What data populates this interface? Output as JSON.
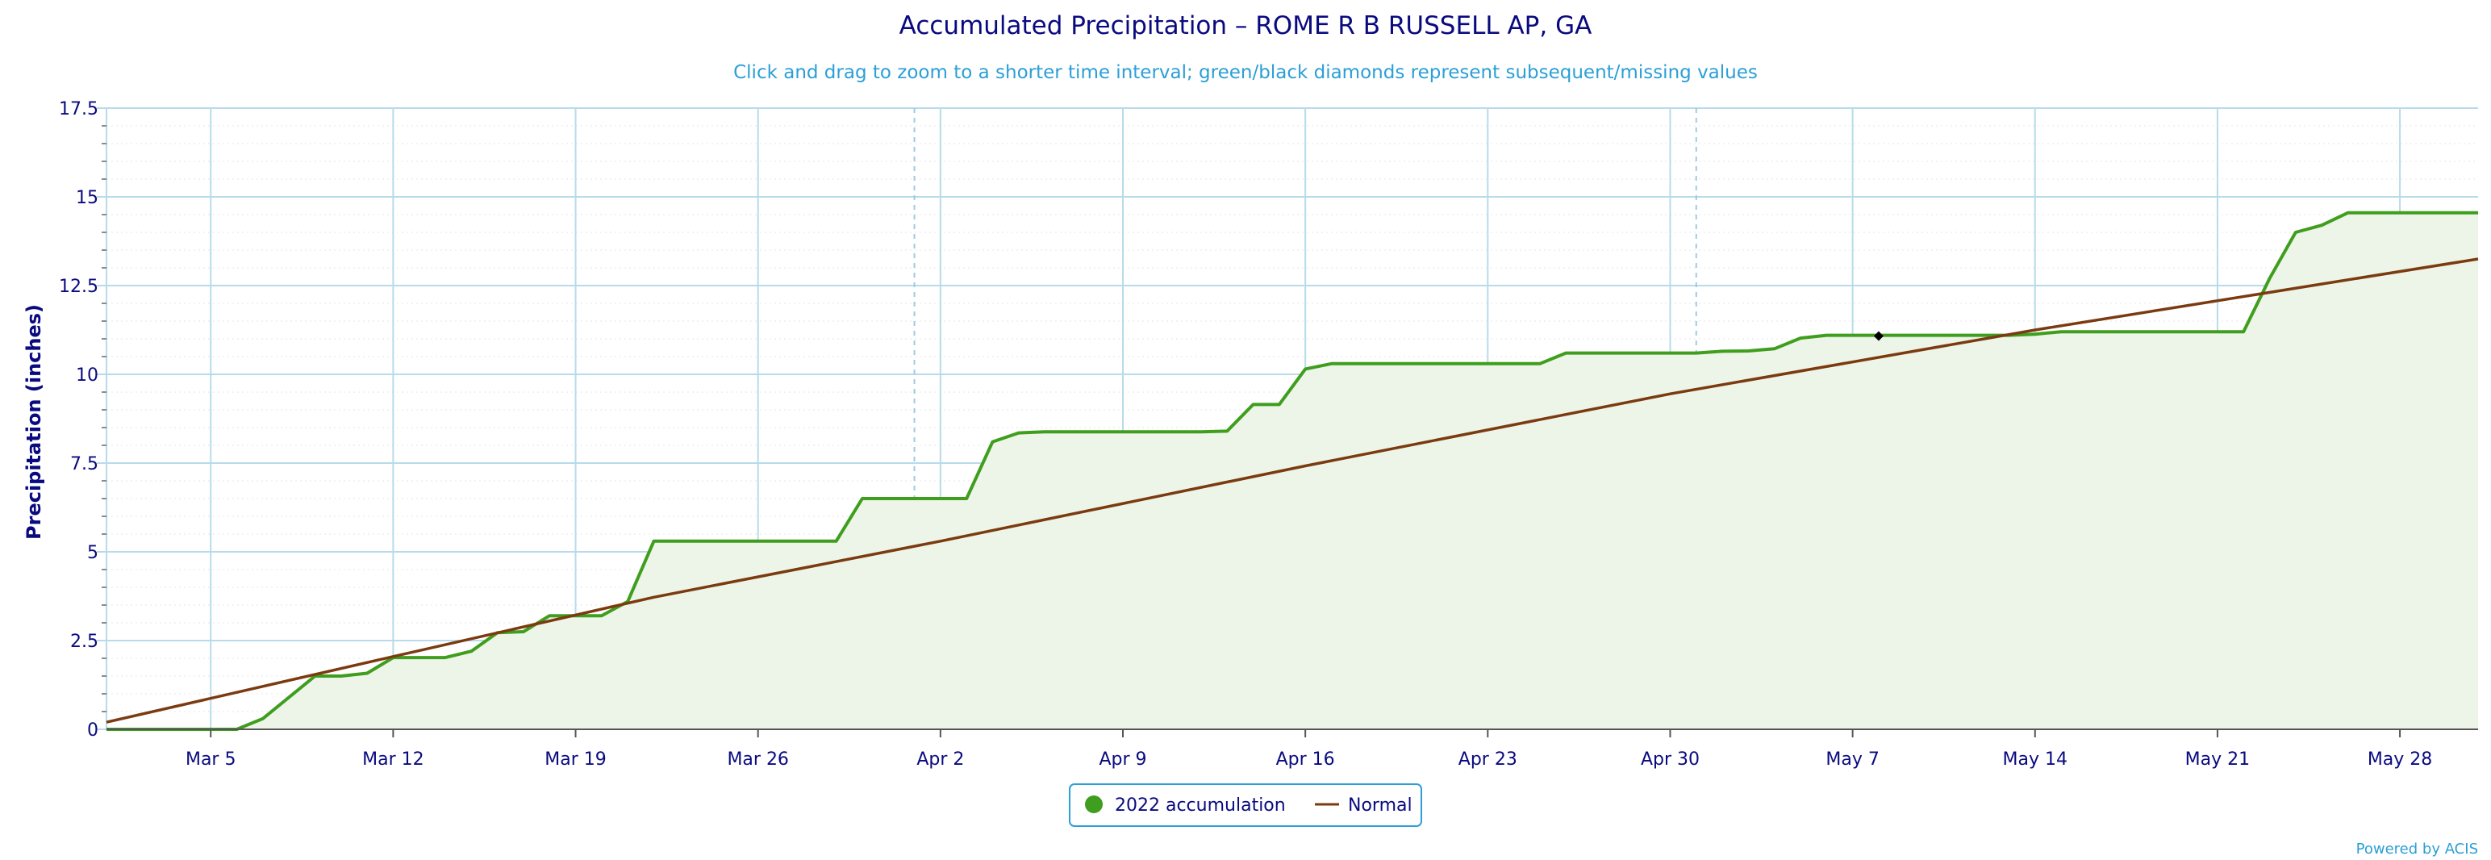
{
  "chart_data": {
    "type": "line",
    "title": "Accumulated Precipitation – ROME R B RUSSELL AP, GA",
    "subtitle": "Click and drag to zoom to a shorter time interval; green/black diamonds represent subsequent/missing values",
    "xlabel": "",
    "ylabel": "Precipitation (inches)",
    "x_start": "Mar 1",
    "x_ticks": [
      "Mar 5",
      "Mar 12",
      "Mar 19",
      "Mar 26",
      "Apr 2",
      "Apr 9",
      "Apr 16",
      "Apr 23",
      "Apr 30",
      "May 7",
      "May 14",
      "May 21",
      "May 28"
    ],
    "x_range": [
      "Mar 1",
      "May 31"
    ],
    "ylim": [
      0,
      17.5
    ],
    "y_ticks": [
      "0",
      "2.5",
      "5",
      "7.5",
      "10",
      "12.5",
      "15",
      "17.5"
    ],
    "grid": true,
    "legend_position": "bottom",
    "series": [
      {
        "name": "2022 accumulation",
        "color": "#3f9e1d",
        "fill": "#ecf5e8",
        "points": [
          [
            "Mar 1",
            0
          ],
          [
            "Mar 6",
            0
          ],
          [
            "Mar 7",
            0.3
          ],
          [
            "Mar 9",
            1.5
          ],
          [
            "Mar 10",
            1.5
          ],
          [
            "Mar 11",
            1.58
          ],
          [
            "Mar 12",
            2.02
          ],
          [
            "Mar 14",
            2.02
          ],
          [
            "Mar 15",
            2.2
          ],
          [
            "Mar 16",
            2.72
          ],
          [
            "Mar 17",
            2.75
          ],
          [
            "Mar 18",
            3.2
          ],
          [
            "Mar 20",
            3.2
          ],
          [
            "Mar 21",
            3.6
          ],
          [
            "Mar 22",
            5.3
          ],
          [
            "Mar 29",
            5.3
          ],
          [
            "Mar 30",
            6.5
          ],
          [
            "Apr 3",
            6.5
          ],
          [
            "Apr 4",
            8.1
          ],
          [
            "Apr 5",
            8.35
          ],
          [
            "Apr 6",
            8.38
          ],
          [
            "Apr 12",
            8.38
          ],
          [
            "Apr 13",
            8.4
          ],
          [
            "Apr 14",
            9.15
          ],
          [
            "Apr 15",
            9.15
          ],
          [
            "Apr 16",
            10.15
          ],
          [
            "Apr 17",
            10.3
          ],
          [
            "Apr 25",
            10.3
          ],
          [
            "Apr 26",
            10.6
          ],
          [
            "May 1",
            10.6
          ],
          [
            "May 2",
            10.65
          ],
          [
            "May 3",
            10.66
          ],
          [
            "May 4",
            10.72
          ],
          [
            "May 5",
            11.02
          ],
          [
            "May 6",
            11.1
          ],
          [
            "May 13",
            11.1
          ],
          [
            "May 14",
            11.13
          ],
          [
            "May 15",
            11.2
          ],
          [
            "May 22",
            11.2
          ],
          [
            "May 23",
            12.7
          ],
          [
            "May 24",
            14.0
          ],
          [
            "May 25",
            14.2
          ],
          [
            "May 26",
            14.55
          ],
          [
            "May 31",
            14.55
          ]
        ]
      },
      {
        "name": "Normal",
        "color": "#7b3a10",
        "points": [
          [
            "Mar 1",
            0.2
          ],
          [
            "Mar 12",
            2.05
          ],
          [
            "Mar 22",
            3.72
          ],
          [
            "Apr 2",
            5.3
          ],
          [
            "Apr 16",
            7.42
          ],
          [
            "Apr 30",
            9.45
          ],
          [
            "May 14",
            11.25
          ],
          [
            "May 31",
            13.25
          ]
        ]
      }
    ],
    "markers": [
      {
        "date": "May 8",
        "value": 11.08,
        "color": "#000000",
        "shape": "diamond"
      }
    ]
  },
  "legend": {
    "items": [
      {
        "label": "2022 accumulation",
        "color": "#3f9e1d",
        "symbol": "circle"
      },
      {
        "label": "Normal",
        "color": "#7b3a10",
        "symbol": "line"
      }
    ]
  },
  "credit": "Powered by ACIS"
}
